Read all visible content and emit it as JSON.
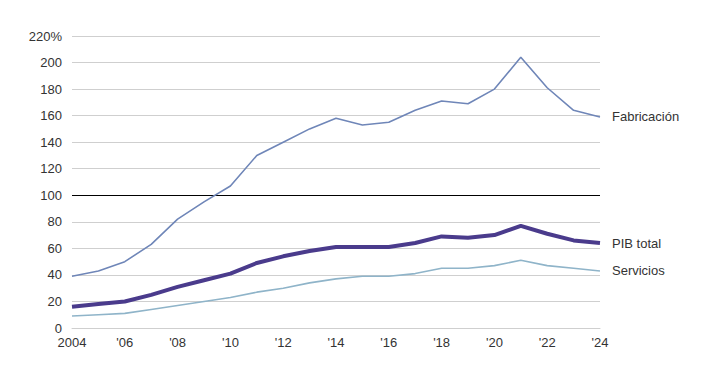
{
  "chart_data": {
    "type": "line",
    "categories": [
      "2004",
      null,
      "'06",
      null,
      "'08",
      null,
      "'10",
      null,
      "'12",
      null,
      "'14",
      null,
      "'16",
      null,
      "'18",
      null,
      "'20",
      null,
      "'22",
      null,
      "'24"
    ],
    "series": [
      {
        "name": "Fabricación",
        "color": "#6f86b8",
        "line_style": "solid",
        "values": [
          39,
          43,
          50,
          63,
          82,
          95,
          107,
          130,
          140,
          150,
          158,
          153,
          155,
          164,
          171,
          169,
          180,
          204,
          181,
          164,
          159
        ]
      },
      {
        "name": "PIB total",
        "color": "#4a3b8c",
        "line_style": "bold",
        "values": [
          16,
          18,
          20,
          25,
          31,
          36,
          41,
          49,
          54,
          58,
          61,
          61,
          61,
          64,
          69,
          68,
          70,
          77,
          71,
          66,
          64
        ]
      },
      {
        "name": "Servicios",
        "color": "#8fb4c9",
        "line_style": "solid",
        "values": [
          9,
          10,
          11,
          14,
          17,
          20,
          23,
          27,
          30,
          34,
          37,
          39,
          39,
          41,
          45,
          45,
          47,
          51,
          47,
          45,
          43
        ]
      }
    ],
    "ylim": [
      0,
      220
    ],
    "yticks": [
      0,
      20,
      40,
      60,
      80,
      100,
      120,
      140,
      160,
      180,
      200,
      {
        "value": 220,
        "label": "220%"
      }
    ],
    "hline": 100,
    "grid": true
  }
}
